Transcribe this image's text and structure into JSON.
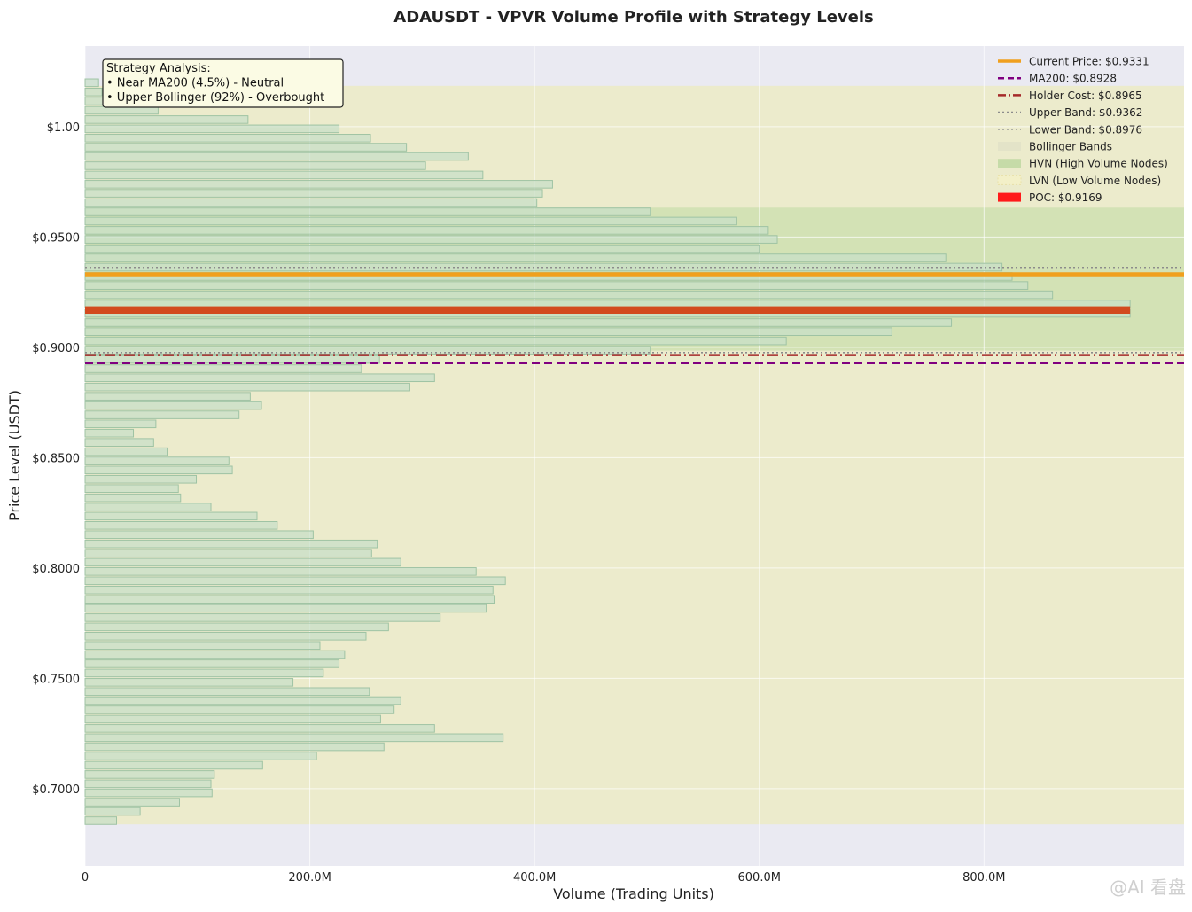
{
  "chart_data": {
    "type": "bar",
    "orientation": "horizontal",
    "title": "ADAUSDT - VPVR Volume Profile with Strategy Levels",
    "xlabel": "Volume (Trading Units)",
    "ylabel": "Price Level (USDT)",
    "xlim": [
      0,
      978000000
    ],
    "ylim": [
      0.665,
      1.0365
    ],
    "x_ticks": [
      {
        "value": 0,
        "label": "0"
      },
      {
        "value": 200000000,
        "label": "200.0M"
      },
      {
        "value": 400000000,
        "label": "400.0M"
      },
      {
        "value": 600000000,
        "label": "600.0M"
      },
      {
        "value": 800000000,
        "label": "800.0M"
      }
    ],
    "y_ticks": [
      {
        "value": 0.7,
        "label": "$0.7000"
      },
      {
        "value": 0.75,
        "label": "$0.7500"
      },
      {
        "value": 0.8,
        "label": "$0.8000"
      },
      {
        "value": 0.85,
        "label": "$0.8500"
      },
      {
        "value": 0.9,
        "label": "$0.9000"
      },
      {
        "value": 0.95,
        "label": "$0.9500"
      },
      {
        "value": 1.0,
        "label": "$1.00"
      }
    ],
    "grid": true,
    "legend_position": "top-right",
    "bin_height": 0.00418,
    "bins": [
      {
        "price": 0.6855,
        "volume": 28000000
      },
      {
        "price": 0.6897,
        "volume": 49000000
      },
      {
        "price": 0.6939,
        "volume": 84000000
      },
      {
        "price": 0.6981,
        "volume": 113000000
      },
      {
        "price": 0.7022,
        "volume": 112000000
      },
      {
        "price": 0.7064,
        "volume": 115000000
      },
      {
        "price": 0.7106,
        "volume": 158000000
      },
      {
        "price": 0.7148,
        "volume": 206000000
      },
      {
        "price": 0.719,
        "volume": 266000000
      },
      {
        "price": 0.7231,
        "volume": 372000000
      },
      {
        "price": 0.7273,
        "volume": 311000000
      },
      {
        "price": 0.7315,
        "volume": 263000000
      },
      {
        "price": 0.7357,
        "volume": 275000000
      },
      {
        "price": 0.7399,
        "volume": 281000000
      },
      {
        "price": 0.744,
        "volume": 253000000
      },
      {
        "price": 0.7482,
        "volume": 185000000
      },
      {
        "price": 0.7524,
        "volume": 212000000
      },
      {
        "price": 0.7566,
        "volume": 226000000
      },
      {
        "price": 0.7608,
        "volume": 231000000
      },
      {
        "price": 0.7649,
        "volume": 209000000
      },
      {
        "price": 0.7691,
        "volume": 250000000
      },
      {
        "price": 0.7733,
        "volume": 270000000
      },
      {
        "price": 0.7775,
        "volume": 316000000
      },
      {
        "price": 0.7817,
        "volume": 357000000
      },
      {
        "price": 0.7858,
        "volume": 364000000
      },
      {
        "price": 0.79,
        "volume": 363000000
      },
      {
        "price": 0.7942,
        "volume": 374000000
      },
      {
        "price": 0.7984,
        "volume": 348000000
      },
      {
        "price": 0.8026,
        "volume": 281000000
      },
      {
        "price": 0.8067,
        "volume": 255000000
      },
      {
        "price": 0.8109,
        "volume": 260000000
      },
      {
        "price": 0.8151,
        "volume": 203000000
      },
      {
        "price": 0.8193,
        "volume": 171000000
      },
      {
        "price": 0.8235,
        "volume": 153000000
      },
      {
        "price": 0.8276,
        "volume": 112000000
      },
      {
        "price": 0.8318,
        "volume": 85000000
      },
      {
        "price": 0.836,
        "volume": 83000000
      },
      {
        "price": 0.8402,
        "volume": 99000000
      },
      {
        "price": 0.8444,
        "volume": 131000000
      },
      {
        "price": 0.8485,
        "volume": 128000000
      },
      {
        "price": 0.8527,
        "volume": 73000000
      },
      {
        "price": 0.8569,
        "volume": 61000000
      },
      {
        "price": 0.8611,
        "volume": 43000000
      },
      {
        "price": 0.8653,
        "volume": 63000000
      },
      {
        "price": 0.8694,
        "volume": 137000000
      },
      {
        "price": 0.8736,
        "volume": 157000000
      },
      {
        "price": 0.8778,
        "volume": 147000000
      },
      {
        "price": 0.882,
        "volume": 289000000
      },
      {
        "price": 0.8862,
        "volume": 311000000
      },
      {
        "price": 0.8903,
        "volume": 246000000
      },
      {
        "price": 0.8945,
        "volume": 262000000
      },
      {
        "price": 0.8987,
        "volume": 503000000
      },
      {
        "price": 0.9029,
        "volume": 624000000
      },
      {
        "price": 0.9071,
        "volume": 718000000
      },
      {
        "price": 0.9112,
        "volume": 771000000
      },
      {
        "price": 0.9154,
        "volume": 930000000
      },
      {
        "price": 0.9196,
        "volume": 930000000
      },
      {
        "price": 0.9238,
        "volume": 861000000
      },
      {
        "price": 0.928,
        "volume": 839000000
      },
      {
        "price": 0.9321,
        "volume": 825000000
      },
      {
        "price": 0.9363,
        "volume": 816000000
      },
      {
        "price": 0.9405,
        "volume": 766000000
      },
      {
        "price": 0.9447,
        "volume": 600000000
      },
      {
        "price": 0.9489,
        "volume": 616000000
      },
      {
        "price": 0.953,
        "volume": 608000000
      },
      {
        "price": 0.9572,
        "volume": 580000000
      },
      {
        "price": 0.9614,
        "volume": 503000000
      },
      {
        "price": 0.9656,
        "volume": 402000000
      },
      {
        "price": 0.9698,
        "volume": 407000000
      },
      {
        "price": 0.9739,
        "volume": 416000000
      },
      {
        "price": 0.9781,
        "volume": 354000000
      },
      {
        "price": 0.9823,
        "volume": 303000000
      },
      {
        "price": 0.9865,
        "volume": 341000000
      },
      {
        "price": 0.9907,
        "volume": 286000000
      },
      {
        "price": 0.9948,
        "volume": 254000000
      },
      {
        "price": 0.999,
        "volume": 226000000
      },
      {
        "price": 1.0032,
        "volume": 145000000
      },
      {
        "price": 1.0074,
        "volume": 65000000
      },
      {
        "price": 1.0116,
        "volume": 30000000
      },
      {
        "price": 1.0157,
        "volume": 15000000
      },
      {
        "price": 1.0199,
        "volume": 12000000
      }
    ],
    "bollinger_band_range": [
      0.6838,
      1.0185
    ],
    "hvn_range": [
      0.8985,
      0.9633
    ],
    "poc": {
      "price": 0.9169,
      "volume": 930000000
    },
    "levels": {
      "current_price": 0.9331,
      "ma200": 0.8928,
      "holder_cost": 0.8965,
      "upper_band": 0.9362,
      "lower_band": 0.8976
    },
    "legend": [
      {
        "key": "current",
        "label": "Current Price: $0.9331"
      },
      {
        "key": "ma200",
        "label": "MA200: $0.8928"
      },
      {
        "key": "holder",
        "label": "Holder Cost: $0.8965"
      },
      {
        "key": "upper",
        "label": "Upper Band: $0.9362"
      },
      {
        "key": "lower",
        "label": "Lower Band: $0.8976"
      },
      {
        "key": "bollinger",
        "label": "Bollinger Bands"
      },
      {
        "key": "hvn",
        "label": "HVN (High Volume Nodes)"
      },
      {
        "key": "lvn",
        "label": "LVN (Low Volume Nodes)"
      },
      {
        "key": "poc",
        "label": "POC: $0.9169"
      }
    ],
    "annotation": [
      "Strategy Analysis:",
      "• Near MA200 (4.5%) - Neutral",
      "• Upper Bollinger (92%) - Overbought"
    ]
  },
  "colors": {
    "plot_bg": "#eaeaf2",
    "bollinger": "#ecebcc",
    "hvn": "#cfe0b0",
    "bar_fill": "#c8dfc8",
    "bar_edge": "#9fc3a4",
    "current": "#f0a01e",
    "ma200": "#800080",
    "holder": "#a52a2a",
    "band": "#8c8c8c",
    "poc": "#d24a1e",
    "poc_legend": "#ff1a1a",
    "note_bg": "#fbfbe4"
  },
  "watermark": "@AI 看盘"
}
